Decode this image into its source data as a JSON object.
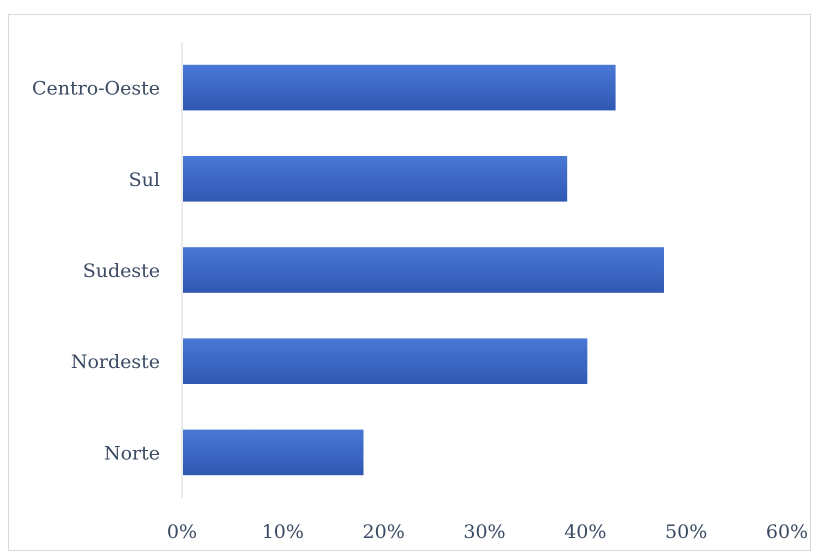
{
  "chart_data": {
    "type": "bar",
    "orientation": "horizontal",
    "categories": [
      "Centro-Oeste",
      "Sul",
      "Sudeste",
      "Nordeste",
      "Norte"
    ],
    "values": [
      43,
      38.2,
      47.8,
      40.2,
      18
    ],
    "value_unit": "%",
    "xlim": [
      0,
      60
    ],
    "xticks": [
      "0%",
      "10%",
      "20%",
      "30%",
      "40%",
      "50%",
      "60%"
    ],
    "title": "",
    "xlabel": "",
    "ylabel": "",
    "grid": false,
    "legend": "none",
    "bar_color": "#3a66c4",
    "bar_color_light": "#4a78d6",
    "bar_color_dark": "#2f58b2"
  }
}
